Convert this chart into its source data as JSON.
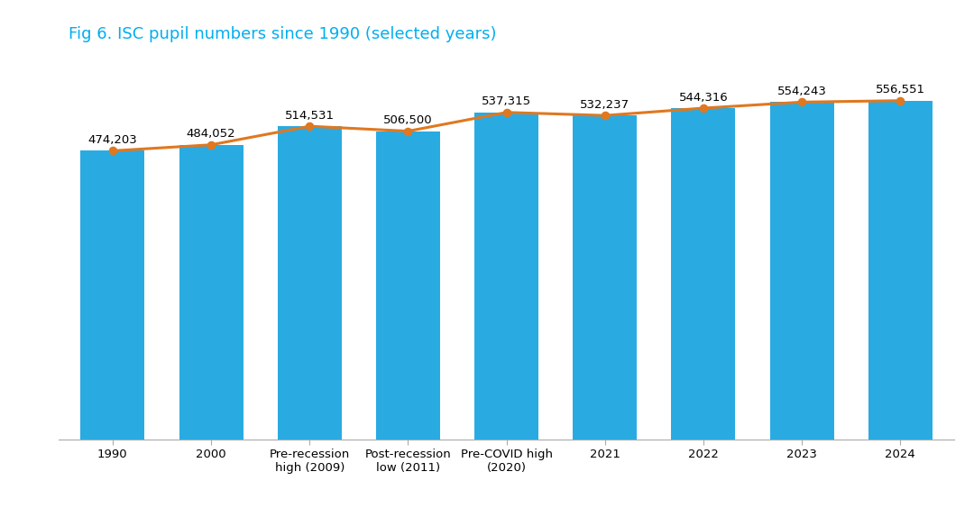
{
  "title": "Fig 6. ISC pupil numbers since 1990 (selected years)",
  "title_color": "#00AEEF",
  "categories": [
    "1990",
    "2000",
    "Pre-recession\nhigh (2009)",
    "Post-recession\nlow (2011)",
    "Pre-COVID high\n(2020)",
    "2021",
    "2022",
    "2023",
    "2024"
  ],
  "values": [
    474203,
    484052,
    514531,
    506500,
    537315,
    532237,
    544316,
    554243,
    556551
  ],
  "labels": [
    "474,203",
    "484,052",
    "514,531",
    "506,500",
    "537,315",
    "532,237",
    "544,316",
    "554,243",
    "556,551"
  ],
  "bar_color": "#29ABE2",
  "line_color": "#E07820",
  "marker_color": "#E07820",
  "background_color": "#FFFFFF",
  "ylim_min": 0,
  "ylim_max": 620000,
  "title_fontsize": 13,
  "label_fontsize": 9.5,
  "tick_fontsize": 9.5
}
